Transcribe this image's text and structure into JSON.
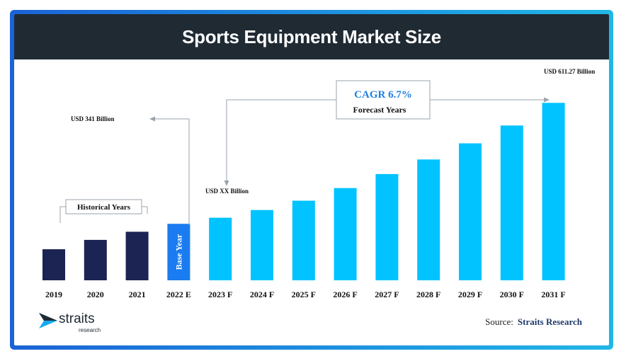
{
  "title": "Sports Equipment Market Size",
  "chart_data": {
    "type": "bar",
    "title": "Sports Equipment Market Size",
    "categories": [
      "2019",
      "2020",
      "2021",
      "2022 E",
      "2023 F",
      "2024 F",
      "2025 F",
      "2026 F",
      "2027 F",
      "2028 F",
      "2029 F",
      "2030 F",
      "2031 F"
    ],
    "values": [
      173,
      225,
      270,
      314,
      348,
      391,
      443,
      513,
      591,
      672,
      762,
      861,
      987
    ],
    "value_units": "relative bar height (0-1000 scale, values undisclosed except endpoints)",
    "ylim": [
      0,
      1000
    ],
    "series_colors": [
      "#1b2452",
      "#1b2452",
      "#1b2452",
      "#1a7cf0",
      "#00c3ff",
      "#00c3ff",
      "#00c3ff",
      "#00c3ff",
      "#00c3ff",
      "#00c3ff",
      "#00c3ff",
      "#00c3ff",
      "#00c3ff"
    ],
    "base_bar_text": "Base Year",
    "annotations": {
      "historical": "Historical Years",
      "usd_341": "USD 341 Billion",
      "usd_xx": "USD XX Billion",
      "usd_611": "USD 611.27 Billion",
      "cagr": "CAGR 6.7%",
      "forecast": "Forecast Years"
    },
    "xlabel": "",
    "ylabel": "",
    "grid": false
  },
  "logo": {
    "word": "straits",
    "sub": "research"
  },
  "source": {
    "label": "Source:",
    "name": "Straits Research"
  },
  "colors": {
    "header_bg": "#1f2a33",
    "historical": "#1b2452",
    "base": "#1a7cf0",
    "forecast": "#00c3ff",
    "frame_start": "#1b63d6",
    "frame_end": "#20b7e6"
  }
}
